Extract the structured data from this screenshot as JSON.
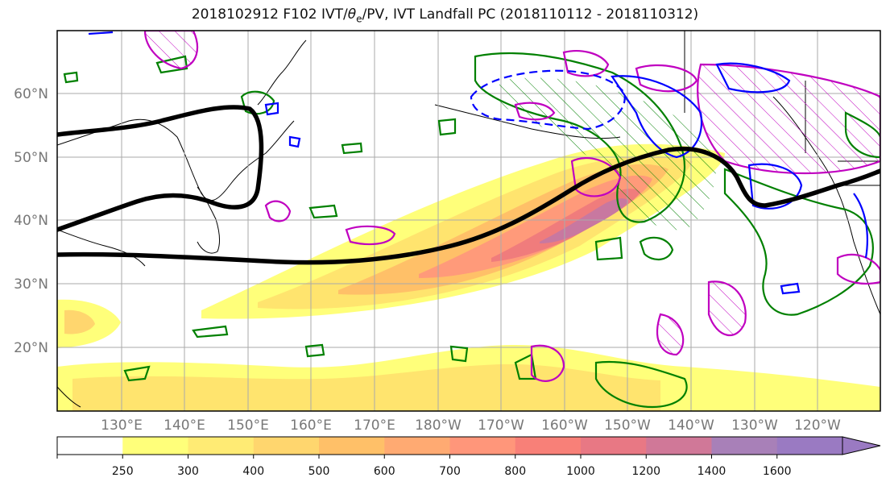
{
  "title": {
    "prefix": "2018102912 F102 IVT/",
    "theta": "θ",
    "sub": "e",
    "suffix": "/PV, IVT Landfall PC (2018110112 - 2018110312)"
  },
  "map": {
    "lat_labels": [
      "60°N",
      "50°N",
      "40°N",
      "30°N",
      "20°N"
    ],
    "lon_labels": [
      "130°E",
      "140°E",
      "150°E",
      "160°E",
      "170°E",
      "180°W",
      "170°W",
      "160°W",
      "150°W",
      "140°W",
      "130°W",
      "120°W"
    ],
    "lat_range": [
      10,
      70
    ],
    "lon_range_east": [
      120,
      250
    ],
    "grid": true
  },
  "colorbar": {
    "ticks": [
      "250",
      "300",
      "400",
      "500",
      "600",
      "700",
      "800",
      "1000",
      "1200",
      "1400",
      "1600"
    ],
    "colors": [
      "#ffffff",
      "#ffff7a",
      "#ffeb74",
      "#ffd66e",
      "#ffc068",
      "#ffaa72",
      "#ff967a",
      "#f88078",
      "#e87884",
      "#d07898",
      "#a880b8",
      "#9a7ac2"
    ],
    "extend": "max"
  },
  "colors": {
    "pv_line": "#000000",
    "theta_positive": "#0000ff",
    "theta_contour_green": "#008000",
    "theta_contour_magenta": "#c000c0"
  }
}
